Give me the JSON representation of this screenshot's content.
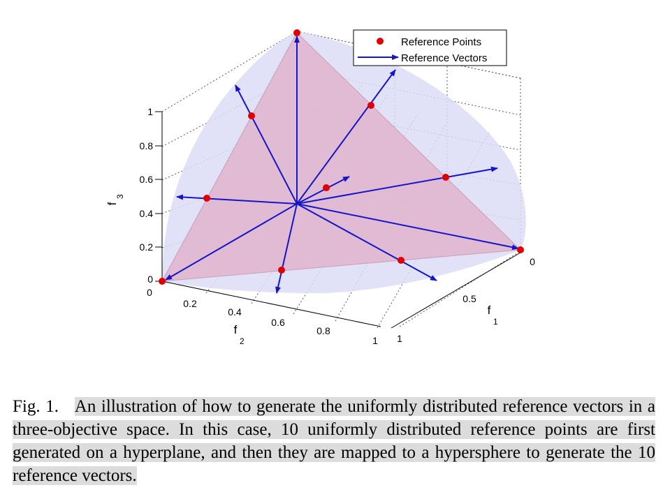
{
  "figure": {
    "legend": {
      "points_label": "Reference Points",
      "vectors_label": "Reference Vectors"
    },
    "axes": {
      "f1_label": "f",
      "f1_sub": "1",
      "f2_label": "f",
      "f2_sub": "2",
      "f3_label": "f",
      "f3_sub": "3",
      "f3_ticks": [
        "0",
        "0.2",
        "0.4",
        "0.6",
        "0.8",
        "1"
      ],
      "f2_ticks": [
        "0",
        "0.2",
        "0.4",
        "0.6",
        "0.8",
        "1"
      ],
      "f1_ticks": [
        "0",
        "0.5",
        "1"
      ]
    },
    "colors": {
      "triangle_fill": "#e0b4cc",
      "sphere_fill": "#dcdcf7",
      "vector_color": "#1414c8",
      "point_color": "#e00000"
    }
  },
  "caption": {
    "prefix": "Fig. 1.",
    "text": "An illustration of how to generate the uniformly distributed reference vectors in a three-objective space. In this case, 10 uniformly distributed reference points are first generated on a hyperplane, and then they are mapped to a hypersphere to generate the 10 reference vectors."
  }
}
